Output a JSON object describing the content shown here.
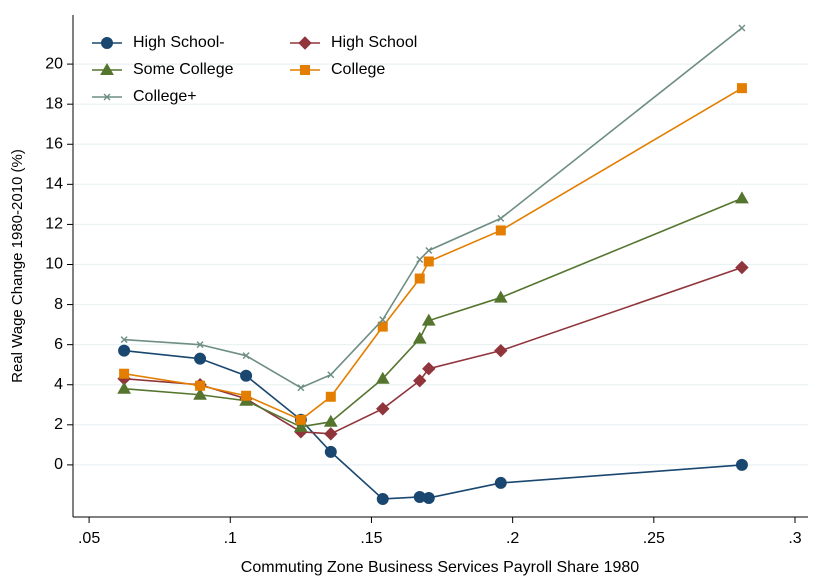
{
  "chart_data": {
    "type": "line",
    "x_label": "Commuting Zone Business Services Payroll Share 1980",
    "y_label": "Real Wage Change 1980-2010 (%)",
    "x": [
      0.0624,
      0.0893,
      0.1056,
      0.125,
      0.1356,
      0.154,
      0.1671,
      0.1703,
      0.1958,
      0.2812
    ],
    "series": [
      {
        "name": "High School-",
        "color": "#1a476f",
        "marker": "circle",
        "values": [
          5.7,
          5.3,
          4.45,
          2.25,
          0.65,
          -1.7,
          -1.6,
          -1.65,
          -0.9,
          0.0
        ]
      },
      {
        "name": "High School",
        "color": "#90353b",
        "marker": "diamond",
        "values": [
          4.3,
          4.0,
          3.3,
          1.65,
          1.55,
          2.8,
          4.2,
          4.8,
          5.7,
          9.85
        ]
      },
      {
        "name": "Some College",
        "color": "#55752f",
        "marker": "triangle",
        "values": [
          3.8,
          3.5,
          3.2,
          1.9,
          2.15,
          4.3,
          6.3,
          7.2,
          8.35,
          13.3
        ]
      },
      {
        "name": "College",
        "color": "#e37e00",
        "marker": "square",
        "values": [
          4.55,
          3.95,
          3.45,
          2.25,
          3.4,
          6.9,
          9.3,
          10.15,
          11.7,
          18.8
        ]
      },
      {
        "name": "College+",
        "color": "#6e8e84",
        "marker": "x",
        "values": [
          6.25,
          6.0,
          5.45,
          3.85,
          4.5,
          7.25,
          10.25,
          10.7,
          12.3,
          21.8
        ]
      }
    ],
    "xlim": [
      0.0443,
      0.3046
    ],
    "xticks": [
      {
        "value": 0.05,
        "label": ".05"
      },
      {
        "value": 0.1,
        "label": ".1"
      },
      {
        "value": 0.15,
        "label": ".15"
      },
      {
        "value": 0.2,
        "label": ".2"
      },
      {
        "value": 0.25,
        "label": ".25"
      },
      {
        "value": 0.3,
        "label": ".3"
      }
    ],
    "ylim": [
      -2.6,
      22.45
    ],
    "yticks": [
      0,
      2,
      4,
      6,
      8,
      10,
      12,
      14,
      16,
      18,
      20
    ],
    "grid": true,
    "legend": "top-left"
  }
}
